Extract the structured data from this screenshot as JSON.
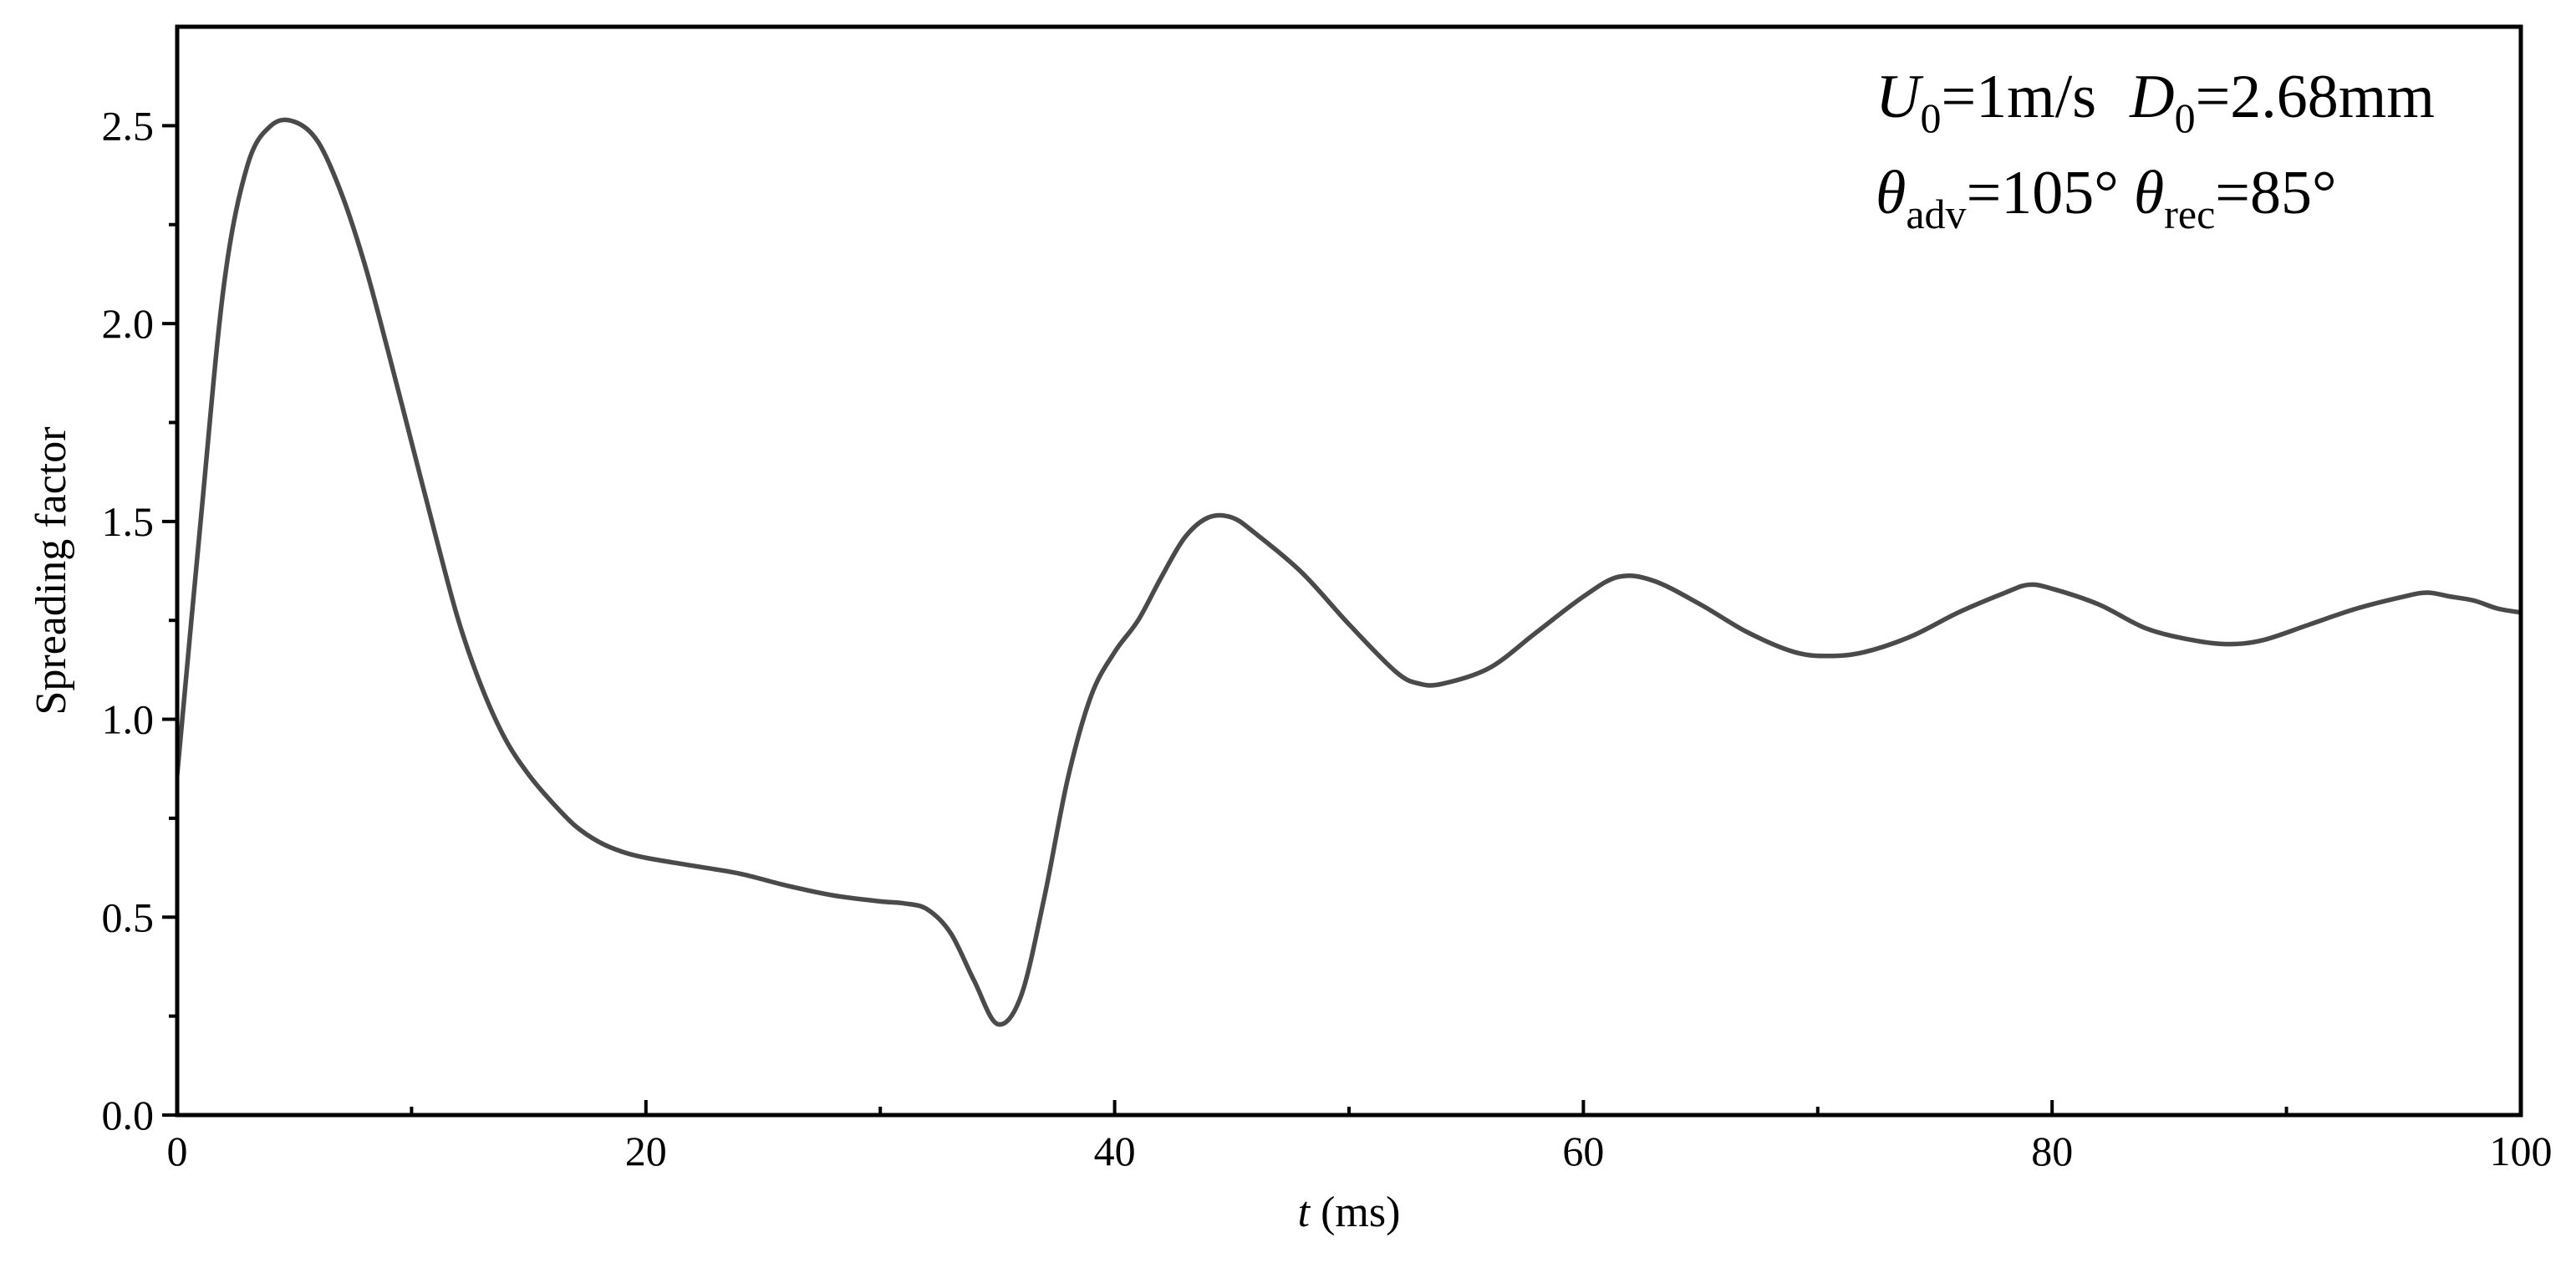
{
  "chart_data": {
    "type": "line",
    "title": "",
    "xlabel": {
      "var": "t",
      "unit": " (ms)"
    },
    "ylabel": "Spreading factor",
    "xlim": [
      0,
      100
    ],
    "ylim": [
      0,
      2.75
    ],
    "xticks": [
      0,
      20,
      40,
      60,
      80,
      100
    ],
    "xtick_labels": [
      "0",
      "20",
      "40",
      "60",
      "80",
      "100"
    ],
    "x_minor_ticks": [
      10,
      30,
      50,
      70,
      90
    ],
    "yticks": [
      0.0,
      0.5,
      1.0,
      1.5,
      2.0,
      2.5
    ],
    "ytick_labels": [
      "0.0",
      "0.5",
      "1.0",
      "1.5",
      "2.0",
      "2.5"
    ],
    "y_minor_ticks": [
      0.25,
      0.75,
      1.25,
      1.75,
      2.25
    ],
    "grid": false,
    "legend": "none",
    "line_color": "#4a4a4a",
    "annotations": {
      "line1": {
        "u_sym": "U",
        "u_sub": "0",
        "u_val": "=1m/s",
        "d_sym": "D",
        "d_sub": "0",
        "d_val": "=2.68mm"
      },
      "line2": {
        "adv_sym": "θ",
        "adv_sub": "adv",
        "adv_val": "=105°",
        "rec_sym": "θ",
        "rec_sub": "rec",
        "rec_val": "=85°"
      }
    },
    "series": [
      {
        "x": [
          0,
          1,
          2,
          3,
          4,
          5,
          6,
          7,
          8,
          9,
          10,
          11,
          12,
          13,
          14,
          15,
          16,
          17,
          18,
          19,
          20,
          22,
          24,
          26,
          28,
          30,
          31,
          32,
          33,
          34,
          35,
          36,
          37,
          38,
          39,
          40,
          41,
          42,
          43,
          44,
          45,
          46,
          48,
          50,
          52,
          53,
          54,
          56,
          58,
          60,
          61.5,
          63,
          65,
          67,
          69,
          70.5,
          72,
          74,
          76,
          78,
          79,
          80,
          82,
          84,
          86,
          87.5,
          89,
          91,
          93,
          95,
          96,
          97,
          98,
          99,
          100
        ],
        "y": [
          0.86,
          1.5,
          2.1,
          2.4,
          2.5,
          2.51,
          2.46,
          2.33,
          2.15,
          1.93,
          1.7,
          1.47,
          1.25,
          1.08,
          0.95,
          0.86,
          0.79,
          0.73,
          0.69,
          0.665,
          0.65,
          0.63,
          0.61,
          0.58,
          0.555,
          0.54,
          0.535,
          0.52,
          0.46,
          0.34,
          0.23,
          0.3,
          0.55,
          0.85,
          1.06,
          1.17,
          1.25,
          1.36,
          1.46,
          1.51,
          1.51,
          1.47,
          1.37,
          1.24,
          1.12,
          1.09,
          1.09,
          1.13,
          1.22,
          1.31,
          1.36,
          1.35,
          1.29,
          1.22,
          1.17,
          1.16,
          1.17,
          1.21,
          1.27,
          1.32,
          1.34,
          1.33,
          1.29,
          1.23,
          1.2,
          1.19,
          1.2,
          1.24,
          1.28,
          1.31,
          1.32,
          1.31,
          1.3,
          1.28,
          1.27
        ]
      }
    ]
  }
}
